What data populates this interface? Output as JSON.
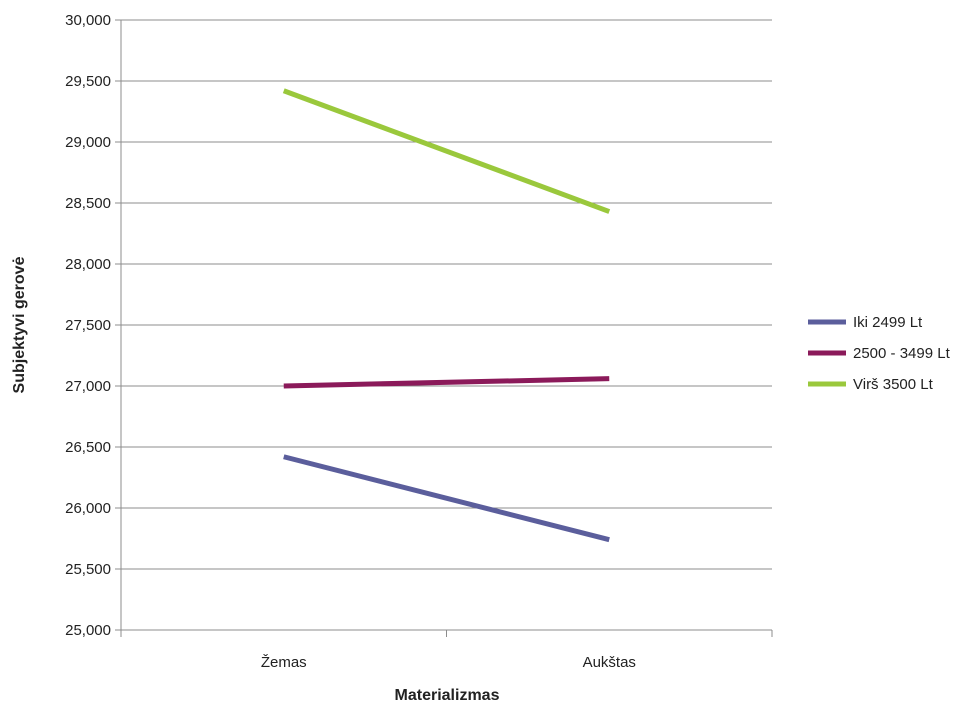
{
  "chart_data": {
    "type": "line",
    "title": "",
    "xlabel": "Materializmas",
    "ylabel": "Subjektyvi gerovė",
    "categories": [
      "Žemas",
      "Aukštas"
    ],
    "ylim": [
      25.0,
      30.0
    ],
    "yticks": [
      "25,000",
      "25,500",
      "26,000",
      "26,500",
      "27,000",
      "27,500",
      "28,000",
      "28,500",
      "29,000",
      "29,500",
      "30,000"
    ],
    "ytick_values": [
      25.0,
      25.5,
      26.0,
      26.5,
      27.0,
      27.5,
      28.0,
      28.5,
      29.0,
      29.5,
      30.0
    ],
    "grid": true,
    "legend_position": "right",
    "series": [
      {
        "name": "Iki 2499 Lt",
        "values": [
          26.42,
          25.74
        ],
        "color": "#5b5e9c"
      },
      {
        "name": "2500 - 3499 Lt",
        "values": [
          27.0,
          27.06
        ],
        "color": "#8b1a5a"
      },
      {
        "name": "Virš 3500 Lt",
        "values": [
          29.42,
          28.43
        ],
        "color": "#9ac83c"
      }
    ]
  }
}
